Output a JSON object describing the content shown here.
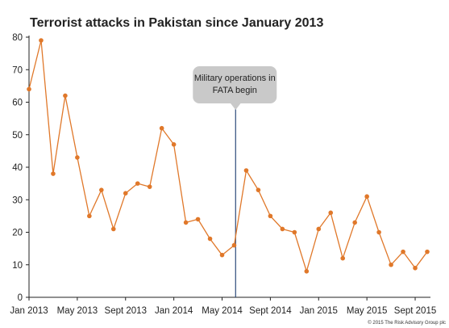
{
  "chart_data": {
    "type": "line",
    "title": "Terrorist attacks in Pakistan since January 2013",
    "xlabel": "",
    "ylabel": "",
    "ylim": [
      0,
      80
    ],
    "yticks": [
      0,
      10,
      20,
      30,
      40,
      50,
      60,
      70,
      80
    ],
    "xtick_labels": [
      "Jan 2013",
      "May 2013",
      "Sept 2013",
      "Jan 2014",
      "May 2014",
      "Sept 2014",
      "Jan 2015",
      "May 2015",
      "Sept 2015"
    ],
    "x": [
      "Jan 2013",
      "Feb 2013",
      "Mar 2013",
      "Apr 2013",
      "May 2013",
      "Jun 2013",
      "Jul 2013",
      "Aug 2013",
      "Sep 2013",
      "Oct 2013",
      "Nov 2013",
      "Dec 2013",
      "Jan 2014",
      "Feb 2014",
      "Mar 2014",
      "Apr 2014",
      "May 2014",
      "Jun 2014",
      "Jul 2014",
      "Aug 2014",
      "Sep 2014",
      "Oct 2014",
      "Nov 2014",
      "Dec 2014",
      "Jan 2015",
      "Feb 2015",
      "Mar 2015",
      "Apr 2015",
      "May 2015",
      "Jun 2015",
      "Jul 2015",
      "Aug 2015",
      "Sep 2015",
      "Oct 2015"
    ],
    "series": [
      {
        "name": "",
        "values": [
          64,
          79,
          38,
          62,
          43,
          25,
          33,
          21,
          32,
          35,
          34,
          52,
          47,
          23,
          24,
          18,
          13,
          16,
          39,
          33,
          25,
          21,
          20,
          8,
          21,
          26,
          12,
          23,
          31,
          20,
          10,
          14,
          9,
          14
        ],
        "color": "#e0782a"
      }
    ],
    "annotation": {
      "text_lines": [
        "Military operations in",
        "FATA begin"
      ],
      "x": "Jun 2014"
    },
    "grid": false,
    "line_color": "#e0782a",
    "marker_color": "#e0782a",
    "axis_color": "#222222",
    "callout_color": "#c9c9c9",
    "annotation_line_color": "#2c4a7a",
    "credit": "© 2015 The Risk Advisory Group plc"
  }
}
